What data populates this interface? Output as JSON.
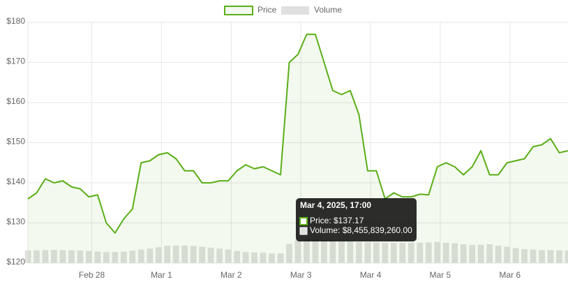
{
  "chart_data": {
    "type": "line",
    "x": [
      "2025-02-27T02:00",
      "2025-02-27T05:00",
      "2025-02-27T08:00",
      "2025-02-27T11:00",
      "2025-02-27T14:00",
      "2025-02-27T17:00",
      "2025-02-27T20:00",
      "2025-02-27T23:00",
      "2025-02-28T02:00",
      "2025-02-28T05:00",
      "2025-02-28T08:00",
      "2025-02-28T11:00",
      "2025-02-28T14:00",
      "2025-02-28T17:00",
      "2025-02-28T20:00",
      "2025-02-28T23:00",
      "2025-03-01T02:00",
      "2025-03-01T05:00",
      "2025-03-01T08:00",
      "2025-03-01T11:00",
      "2025-03-01T14:00",
      "2025-03-01T17:00",
      "2025-03-01T20:00",
      "2025-03-01T23:00",
      "2025-03-02T02:00",
      "2025-03-02T05:00",
      "2025-03-02T08:00",
      "2025-03-02T11:00",
      "2025-03-02T14:00",
      "2025-03-02T17:00",
      "2025-03-02T20:00",
      "2025-03-02T23:00",
      "2025-03-03T02:00",
      "2025-03-03T05:00",
      "2025-03-03T08:00",
      "2025-03-03T11:00",
      "2025-03-03T14:00",
      "2025-03-03T17:00",
      "2025-03-03T20:00",
      "2025-03-03T23:00",
      "2025-03-04T02:00",
      "2025-03-04T05:00",
      "2025-03-04T08:00",
      "2025-03-04T11:00",
      "2025-03-04T14:00",
      "2025-03-04T17:00",
      "2025-03-04T20:00",
      "2025-03-04T23:00",
      "2025-03-05T02:00",
      "2025-03-05T05:00",
      "2025-03-05T08:00",
      "2025-03-05T11:00",
      "2025-03-05T14:00",
      "2025-03-05T17:00",
      "2025-03-05T20:00",
      "2025-03-05T23:00",
      "2025-03-06T02:00",
      "2025-03-06T05:00",
      "2025-03-06T08:00",
      "2025-03-06T11:00",
      "2025-03-06T14:00",
      "2025-03-06T17:00",
      "2025-03-06T20:00"
    ],
    "series": [
      {
        "name": "Price",
        "color": "#5aae17",
        "values": [
          136,
          137.5,
          141,
          140,
          140.5,
          139,
          138.5,
          136.5,
          137,
          130,
          127.5,
          131,
          133.5,
          145,
          145.5,
          147,
          147.5,
          146,
          143,
          143,
          140,
          140,
          140.5,
          140.5,
          143,
          144.5,
          143.5,
          144,
          143,
          142,
          170,
          172,
          177,
          177,
          170,
          163,
          162,
          163,
          157,
          143,
          143,
          136,
          137.5,
          136.5,
          136.5,
          137.17,
          137,
          144,
          145,
          144,
          142,
          144,
          148,
          142,
          142,
          145,
          145.5,
          146,
          149,
          149.5,
          151,
          147.5,
          148
        ]
      },
      {
        "name": "Volume",
        "color": "#e0e0e0",
        "axis": "y2",
        "values": [
          5200000000,
          5300000000,
          5400000000,
          5500000000,
          5400000000,
          5300000000,
          5200000000,
          5000000000,
          4800000000,
          4600000000,
          4600000000,
          4800000000,
          5200000000,
          5600000000,
          6000000000,
          6600000000,
          7200000000,
          7300000000,
          7300000000,
          7100000000,
          6800000000,
          6400000000,
          6000000000,
          5600000000,
          5000000000,
          4600000000,
          4400000000,
          4300000000,
          4000000000,
          4000000000,
          8000000000,
          9500000000,
          10300000000,
          10000000000,
          9600000000,
          9400000000,
          9200000000,
          9000000000,
          8800000000,
          8700000000,
          8600000000,
          8500000000,
          8500000000,
          8500000000,
          8500000000,
          8455839260,
          8600000000,
          8800000000,
          8400000000,
          8200000000,
          7800000000,
          7500000000,
          7600000000,
          7800000000,
          7200000000,
          6800000000,
          6200000000,
          5800000000,
          5600000000,
          5400000000,
          5400000000,
          5300000000,
          5200000000
        ]
      }
    ],
    "xlim": [
      "2025-02-27T02:00",
      "2025-03-06T20:00"
    ],
    "xticks": [
      {
        "value": "2025-02-28T00:00",
        "label": "Feb 28"
      },
      {
        "value": "2025-03-01T00:00",
        "label": "Mar 1"
      },
      {
        "value": "2025-03-02T00:00",
        "label": "Mar 2"
      },
      {
        "value": "2025-03-03T00:00",
        "label": "Mar 3"
      },
      {
        "value": "2025-03-04T00:00",
        "label": "Mar 4"
      },
      {
        "value": "2025-03-05T00:00",
        "label": "Mar 5"
      },
      {
        "value": "2025-03-06T00:00",
        "label": "Mar 6"
      }
    ],
    "ylim": [
      120,
      180
    ],
    "yticks": [
      {
        "value": 120,
        "label": "$120"
      },
      {
        "value": 130,
        "label": "$130"
      },
      {
        "value": 140,
        "label": "$140"
      },
      {
        "value": 150,
        "label": "$150"
      },
      {
        "value": 160,
        "label": "$160"
      },
      {
        "value": 170,
        "label": "$170"
      },
      {
        "value": 180,
        "label": "$180"
      }
    ],
    "y2lim": [
      0,
      100000000000
    ],
    "grid": true,
    "legend": "top",
    "tooltip": {
      "title": "Mar 4, 2025, 17:00",
      "lines": [
        "Price: $137.17",
        "Volume: $8,455,839,260.00"
      ]
    }
  }
}
